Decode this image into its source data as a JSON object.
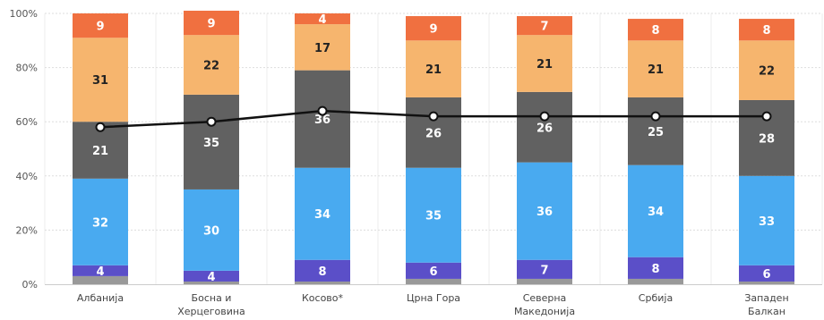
{
  "chart_data": {
    "type": "bar",
    "stacked": true,
    "categories": [
      [
        "Албанија"
      ],
      [
        "Босна и",
        "Херцеговина"
      ],
      [
        "Косово*"
      ],
      [
        "Црна Гора"
      ],
      [
        "Северна",
        "Македонија"
      ],
      [
        "Србија"
      ],
      [
        "Западен",
        "Балкан"
      ]
    ],
    "ylim": [
      0,
      100
    ],
    "yticks": [
      "0%",
      "20%",
      "40%",
      "60%",
      "80%",
      "100%"
    ],
    "grid": true,
    "legend": "none",
    "series": [
      {
        "color": "#999999",
        "values": [
          3,
          1,
          1,
          2,
          2,
          2,
          1
        ],
        "labels": [
          "",
          "",
          "",
          "",
          "",
          "",
          ""
        ]
      },
      {
        "color": "#5b4fc8",
        "values": [
          4,
          4,
          8,
          6,
          7,
          8,
          6
        ],
        "labels": [
          "4",
          "4",
          "8",
          "6",
          "7",
          "8",
          "6"
        ]
      },
      {
        "color": "#49aaf0",
        "values": [
          32,
          30,
          34,
          35,
          36,
          34,
          33
        ],
        "labels": [
          "32",
          "30",
          "34",
          "35",
          "36",
          "34",
          "33"
        ]
      },
      {
        "color": "#616161",
        "values": [
          21,
          35,
          36,
          26,
          26,
          25,
          28
        ],
        "labels": [
          "21",
          "35",
          "36",
          "26",
          "26",
          "25",
          "28"
        ]
      },
      {
        "color": "#f6b56e",
        "values": [
          31,
          22,
          17,
          21,
          21,
          21,
          22
        ],
        "labels": [
          "31",
          "22",
          "17",
          "21",
          "21",
          "21",
          "22"
        ]
      },
      {
        "color": "#f07040",
        "values": [
          9,
          9,
          4,
          9,
          7,
          8,
          8
        ],
        "labels": [
          "9",
          "9",
          "4",
          "9",
          "7",
          "8",
          "8"
        ]
      }
    ],
    "line": {
      "color": "#111111",
      "values": [
        58,
        60,
        64,
        62,
        62,
        62,
        62
      ]
    }
  }
}
